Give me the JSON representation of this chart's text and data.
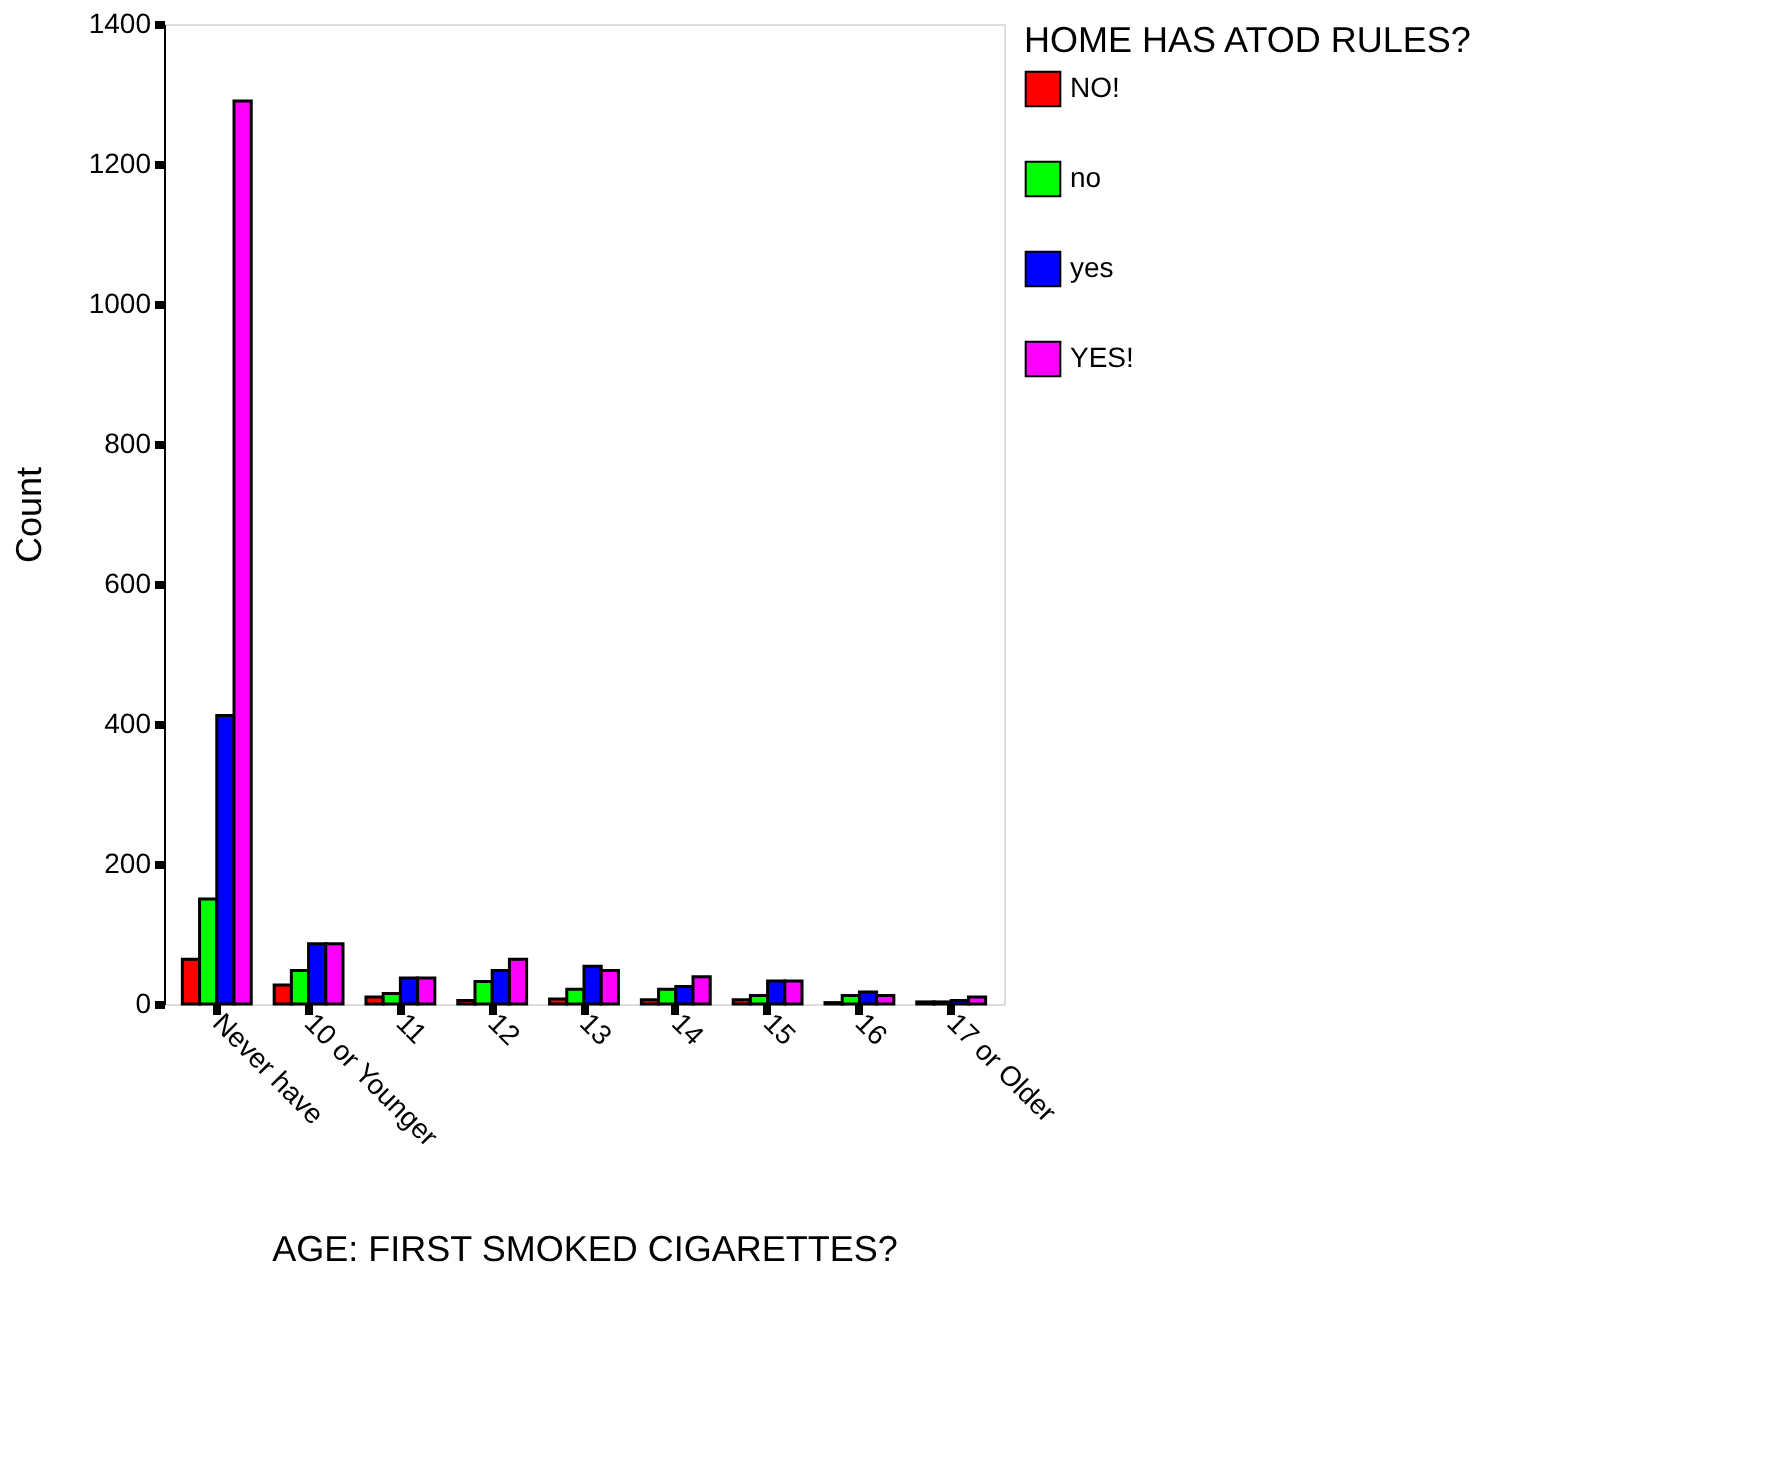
{
  "chart_data": {
    "type": "bar",
    "xlabel": "AGE: FIRST SMOKED CIGARETTES?",
    "ylabel": "Count",
    "legend_title": "HOME HAS ATOD RULES?",
    "categories": [
      "Never have",
      "10 or Younger",
      "11",
      "12",
      "13",
      "14",
      "15",
      "16",
      "17 or Older"
    ],
    "series": [
      {
        "name": "NO!",
        "color": "#ff0000",
        "values": [
          64,
          27,
          10,
          5,
          7,
          6,
          6,
          2,
          3
        ]
      },
      {
        "name": "no",
        "color": "#00ff00",
        "values": [
          150,
          48,
          15,
          32,
          21,
          21,
          12,
          12,
          3
        ]
      },
      {
        "name": "yes",
        "color": "#0000ff",
        "values": [
          412,
          86,
          37,
          48,
          54,
          25,
          33,
          17,
          5
        ]
      },
      {
        "name": "YES!",
        "color": "#ff00ff",
        "values": [
          1290,
          86,
          37,
          64,
          48,
          39,
          33,
          12,
          10
        ]
      }
    ],
    "ylim": [
      0,
      1400
    ],
    "yticks": [
      0,
      200,
      400,
      600,
      800,
      1000,
      1200,
      1400
    ],
    "grid": false,
    "legend": "right"
  }
}
